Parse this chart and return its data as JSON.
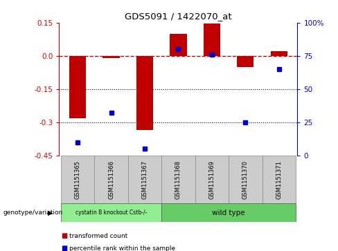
{
  "title": "GDS5091 / 1422070_at",
  "samples": [
    "GSM1151365",
    "GSM1151366",
    "GSM1151367",
    "GSM1151368",
    "GSM1151369",
    "GSM1151370",
    "GSM1151371"
  ],
  "red_bars": [
    -0.28,
    -0.01,
    -0.335,
    0.1,
    0.145,
    -0.052,
    0.02
  ],
  "blue_dots_pct": [
    10,
    32,
    5,
    80,
    76,
    25,
    65
  ],
  "ylim": [
    -0.45,
    0.15
  ],
  "yticks_left": [
    0.15,
    0.0,
    -0.15,
    -0.3,
    -0.45
  ],
  "yticks_right_pct": [
    100,
    75,
    50,
    25,
    0
  ],
  "hline_y": 0.0,
  "dotted_lines": [
    -0.15,
    -0.3
  ],
  "bar_color": "#C00000",
  "dot_color": "#0000CC",
  "bar_width": 0.5,
  "group1_label": "cystatin B knockout Cstb-/-",
  "group2_label": "wild type",
  "group1_indices": [
    0,
    1,
    2
  ],
  "group2_indices": [
    3,
    4,
    5,
    6
  ],
  "group1_color": "#90EE90",
  "group2_color": "#66CC66",
  "genotype_label": "genotype/variation",
  "legend1": "transformed count",
  "legend2": "percentile rank within the sample",
  "bg_color": "#FFFFFF",
  "plot_bg": "#FFFFFF",
  "right_axis_color": "#0000CC",
  "left_axis_color": "#CC0000",
  "label_box_color": "#CCCCCC"
}
